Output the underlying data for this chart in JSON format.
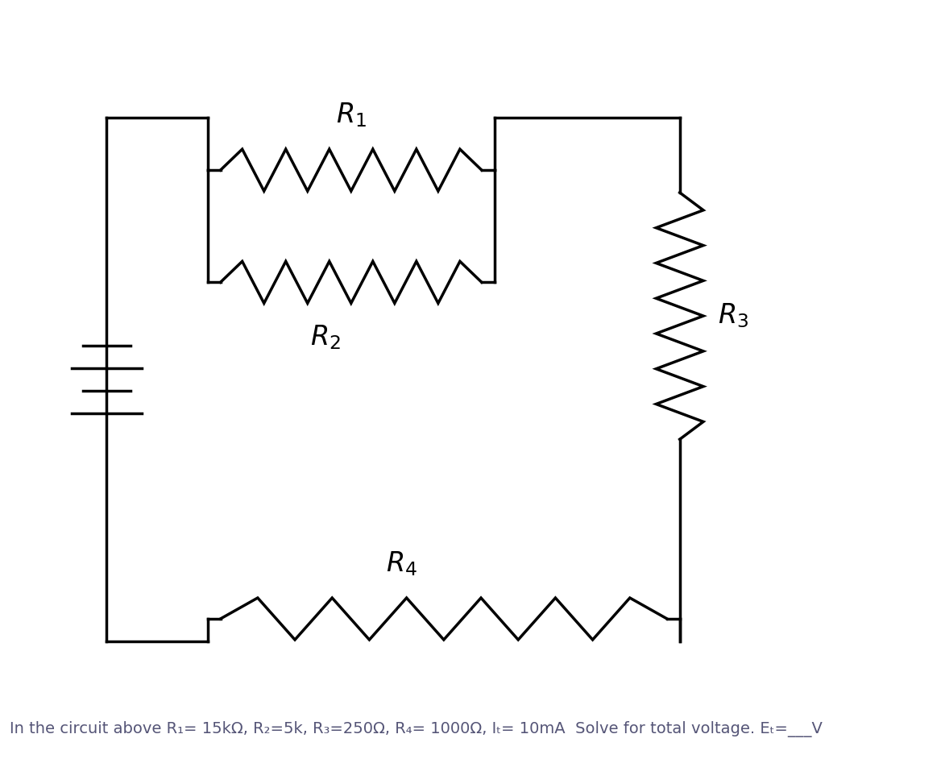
{
  "bg_color": "#ffffff",
  "line_color": "#000000",
  "line_width": 2.5,
  "caption": "In the circuit above R₁= 15kΩ, R₂=5k, R₃=250Ω, R₄= 1000Ω, Iₜ= 10mA  Solve for total voltage. Eₜ=___V",
  "caption_fontsize": 14,
  "caption_color": "#555577"
}
